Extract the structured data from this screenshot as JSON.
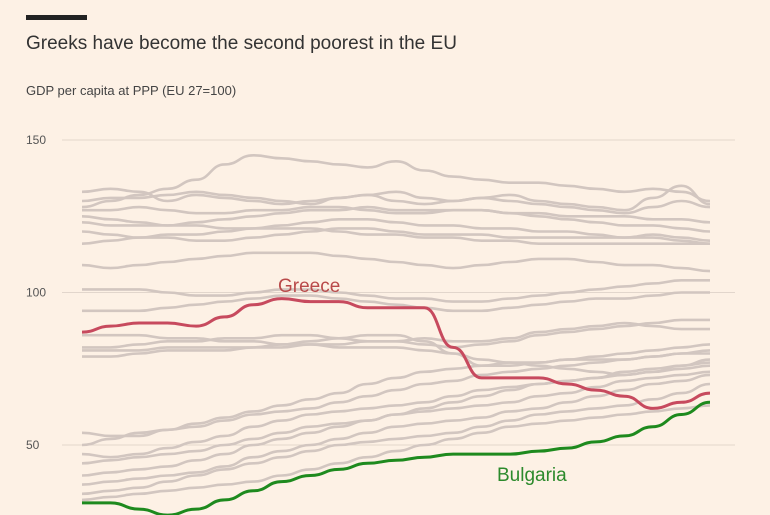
{
  "title": "Greeks have become the second poorest in the EU",
  "subtitle": "GDP per capita at PPP (EU 27=100)",
  "colors": {
    "background": "#fdf1e5",
    "other_countries": "#d2c6c0",
    "greece": "#c74a5e",
    "bulgaria": "#1e8a1e",
    "callout_greece": "#b94a4a",
    "callout_bulgaria": "#2c8a2c",
    "gridline": "#e2d6cc"
  },
  "chart_data": {
    "type": "line",
    "title": "Greeks have become the second poorest in the EU",
    "ylabel": "GDP per capita at PPP (EU 27=100)",
    "ylim": [
      30,
      152
    ],
    "yticks": [
      50,
      100,
      150
    ],
    "ytick_labels": [
      "50",
      "100",
      "150"
    ],
    "grid": true,
    "x": [
      0,
      1,
      2,
      3,
      4,
      5,
      6,
      7,
      8,
      9,
      10,
      11,
      12,
      13,
      14,
      15,
      16,
      17,
      18,
      19,
      20,
      21,
      22
    ],
    "annotations": [
      {
        "text": "Greece",
        "series": "Greece"
      },
      {
        "text": "Bulgaria",
        "series": "Bulgaria"
      }
    ],
    "highlighted": [
      {
        "name": "Greece",
        "color": "#c74a5e",
        "values": [
          87,
          89,
          90,
          90,
          89,
          92,
          96,
          98,
          97,
          97,
          95,
          95,
          95,
          82,
          72,
          72,
          72,
          70,
          68,
          66,
          62,
          64,
          67
        ]
      },
      {
        "name": "Bulgaria",
        "color": "#1e8a1e",
        "values": [
          31,
          31,
          29,
          27,
          29,
          32,
          35,
          38,
          40,
          42,
          44,
          45,
          46,
          47,
          47,
          47,
          48,
          49,
          51,
          53,
          56,
          60,
          64
        ]
      }
    ],
    "other_series": [
      {
        "values": [
          133,
          134,
          133,
          130,
          132,
          131,
          130,
          129,
          130,
          131,
          132,
          130,
          129,
          130,
          131,
          130,
          129,
          128,
          127,
          126,
          128,
          130,
          128
        ]
      },
      {
        "values": [
          130,
          131,
          131,
          132,
          133,
          132,
          131,
          130,
          129,
          131,
          132,
          133,
          131,
          130,
          131,
          132,
          130,
          129,
          128,
          127,
          131,
          135,
          129
        ]
      },
      {
        "values": [
          128,
          130,
          132,
          134,
          137,
          142,
          145,
          144,
          143,
          142,
          141,
          143,
          140,
          138,
          137,
          136,
          136,
          135,
          134,
          133,
          134,
          133,
          130
        ]
      },
      {
        "values": [
          127,
          127,
          128,
          127,
          126,
          126,
          127,
          127,
          128,
          128,
          127,
          126,
          126,
          127,
          127,
          126,
          125,
          124,
          123,
          122,
          122,
          121,
          120
        ]
      },
      {
        "values": [
          125,
          124,
          123,
          122,
          122,
          121,
          121,
          122,
          123,
          124,
          124,
          123,
          122,
          122,
          121,
          121,
          120,
          120,
          119,
          118,
          118,
          117,
          116
        ]
      },
      {
        "values": [
          123,
          122,
          122,
          122,
          123,
          124,
          125,
          126,
          127,
          127,
          128,
          127,
          127,
          127,
          127,
          126,
          126,
          125,
          125,
          125,
          124,
          124,
          123
        ]
      },
      {
        "values": [
          120,
          119,
          118,
          118,
          117,
          117,
          118,
          119,
          120,
          121,
          121,
          120,
          119,
          119,
          119,
          118,
          118,
          118,
          118,
          118,
          119,
          118,
          117
        ]
      },
      {
        "values": [
          116,
          117,
          118,
          119,
          119,
          120,
          121,
          121,
          121,
          120,
          119,
          119,
          118,
          118,
          117,
          117,
          116,
          116,
          116,
          116,
          116,
          116,
          116
        ]
      },
      {
        "values": [
          109,
          108,
          109,
          110,
          111,
          112,
          113,
          113,
          113,
          112,
          111,
          110,
          109,
          108,
          109,
          110,
          111,
          111,
          110,
          109,
          109,
          108,
          107
        ]
      },
      {
        "values": [
          101,
          101,
          101,
          100,
          99,
          99,
          100,
          101,
          101,
          100,
          99,
          98,
          98,
          97,
          97,
          98,
          99,
          100,
          101,
          102,
          103,
          104,
          104
        ]
      },
      {
        "values": [
          94,
          94,
          94,
          95,
          96,
          97,
          98,
          99,
          99,
          98,
          97,
          96,
          95,
          94,
          94,
          95,
          96,
          97,
          98,
          98,
          99,
          100,
          100
        ]
      },
      {
        "values": [
          82,
          82,
          83,
          84,
          84,
          85,
          85,
          86,
          86,
          85,
          84,
          84,
          83,
          82,
          83,
          84,
          86,
          87,
          88,
          89,
          90,
          91,
          91
        ]
      },
      {
        "values": [
          79,
          79,
          80,
          81,
          81,
          81,
          82,
          82,
          83,
          83,
          84,
          84,
          85,
          84,
          84,
          85,
          87,
          88,
          89,
          90,
          89,
          88,
          88
        ]
      },
      {
        "values": [
          86,
          86,
          86,
          85,
          85,
          84,
          84,
          83,
          84,
          85,
          86,
          86,
          84,
          80,
          76,
          76,
          77,
          78,
          78,
          78,
          79,
          80,
          80
        ]
      },
      {
        "values": [
          81,
          81,
          81,
          82,
          82,
          82,
          82,
          83,
          83,
          82,
          82,
          82,
          81,
          80,
          78,
          77,
          76,
          75,
          74,
          73,
          74,
          76,
          78
        ]
      },
      {
        "values": [
          54,
          53,
          53,
          55,
          57,
          59,
          61,
          63,
          65,
          67,
          70,
          72,
          74,
          75,
          76,
          77,
          77,
          78,
          79,
          80,
          81,
          82,
          83
        ]
      },
      {
        "values": [
          50,
          52,
          54,
          55,
          56,
          58,
          60,
          61,
          62,
          64,
          66,
          68,
          70,
          71,
          73,
          74,
          75,
          76,
          77,
          78,
          79,
          80,
          81
        ]
      },
      {
        "values": [
          47,
          46,
          47,
          49,
          51,
          53,
          56,
          58,
          60,
          61,
          62,
          63,
          64,
          66,
          68,
          69,
          70,
          71,
          72,
          74,
          75,
          76,
          77
        ]
      },
      {
        "values": [
          44,
          45,
          46,
          47,
          48,
          50,
          52,
          54,
          56,
          57,
          58,
          60,
          62,
          64,
          66,
          68,
          70,
          71,
          72,
          73,
          74,
          75,
          76
        ]
      },
      {
        "values": [
          40,
          41,
          42,
          43,
          45,
          47,
          50,
          52,
          54,
          56,
          58,
          60,
          61,
          62,
          63,
          64,
          66,
          67,
          69,
          71,
          72,
          73,
          74
        ]
      },
      {
        "values": [
          37,
          38,
          39,
          40,
          41,
          43,
          46,
          48,
          50,
          52,
          54,
          56,
          57,
          58,
          59,
          61,
          62,
          64,
          66,
          68,
          70,
          71,
          73
        ]
      },
      {
        "values": [
          34,
          35,
          36,
          38,
          40,
          42,
          44,
          46,
          48,
          50,
          51,
          52,
          53,
          54,
          56,
          58,
          60,
          61,
          62,
          63,
          65,
          67,
          70
        ]
      },
      {
        "values": [
          32,
          33,
          34,
          35,
          36,
          37,
          38,
          40,
          42,
          44,
          46,
          48,
          50,
          52,
          54,
          56,
          57,
          58,
          59,
          60,
          61,
          62,
          63
        ]
      }
    ]
  }
}
